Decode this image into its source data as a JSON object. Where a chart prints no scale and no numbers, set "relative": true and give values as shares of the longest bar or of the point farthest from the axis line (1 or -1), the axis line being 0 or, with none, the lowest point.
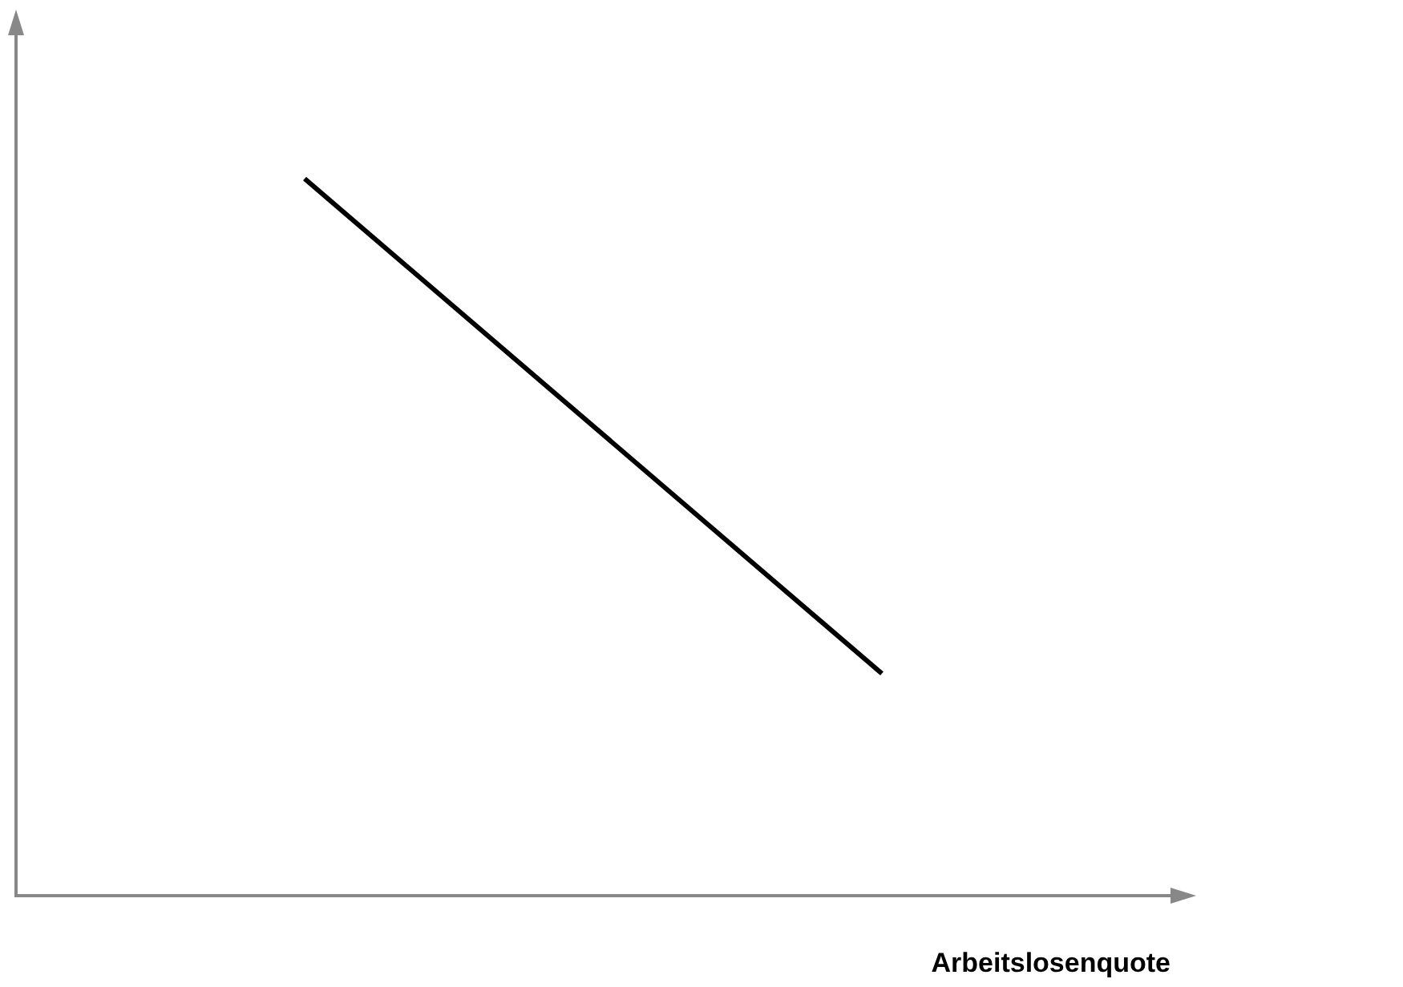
{
  "chart_data": {
    "type": "line",
    "relative": true,
    "xlabel": "Arbeitslosenquote",
    "categories": [
      null,
      null
    ],
    "series": [
      {
        "color": "#000000",
        "values": [
          1,
          0.31
        ]
      }
    ],
    "grid": false,
    "legend": false,
    "marker": "none",
    "line_style": "solid"
  }
}
